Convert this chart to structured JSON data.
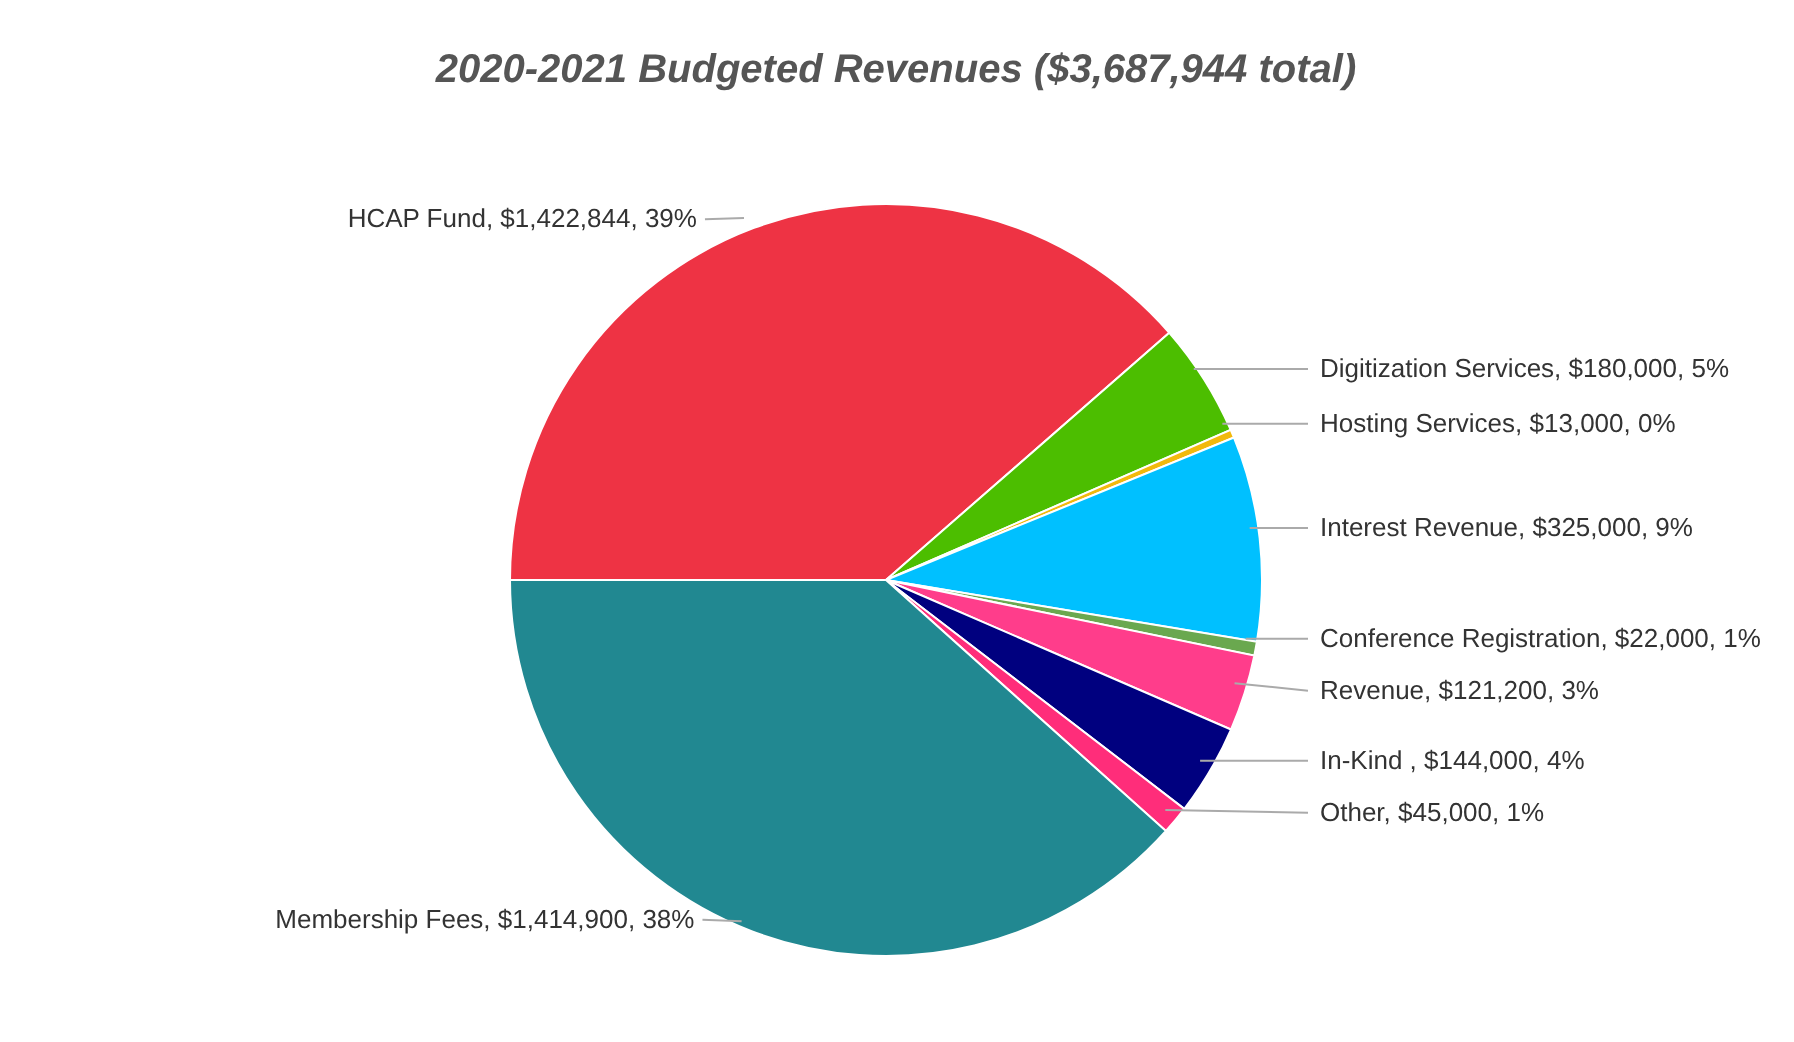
{
  "chart_data": {
    "type": "pie",
    "title": "2020-2021 Budgeted Revenues ($3,687,944 total)",
    "categories": [
      "HCAP Fund",
      "Digitization Services",
      "Hosting Services",
      "Interest Revenue",
      "Conference Registration",
      "Revenue",
      "In-Kind ",
      "Other",
      "Membership Fees"
    ],
    "values": [
      1422844,
      180000,
      13000,
      325000,
      22000,
      121200,
      144000,
      45000,
      1414900
    ],
    "colors": [
      "#ee3344",
      "#4cbe00",
      "#f2b90c",
      "#00c0ff",
      "#6aa84f",
      "#ff3d8b",
      "#00007f",
      "#ff2d7a",
      "#218891"
    ],
    "value_labels": [
      "$1,422,844, 39%",
      "$180,000, 5%",
      "$13,000, 0%",
      "$325,000, 9%",
      "$22,000, 1%",
      "$121,200, 3%",
      "$144,000, 4%",
      "$45,000, 1%",
      "$1,414,900, 38%"
    ]
  }
}
